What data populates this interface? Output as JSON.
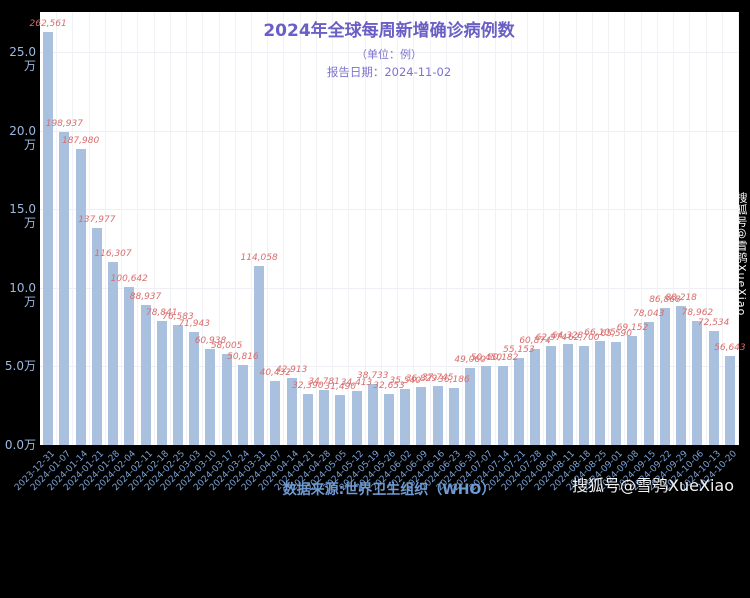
{
  "title": {
    "main": "2024年全球每周新增确诊病例数",
    "unit": "（单位：例）",
    "report_date": "报告日期：2024-11-02"
  },
  "source": "数据来源:世界卫生组织（WHO）",
  "watermark": {
    "bottom_right": "搜狐号@雪鸮XueXiao",
    "right_vertical": "搜狐号@雪鸮XueXiao"
  },
  "y_axis": {
    "labels": [
      "25.0万",
      "20.0万",
      "15.0万",
      "10.0万",
      "5.0万",
      "0.0万"
    ],
    "values": [
      250000,
      200000,
      150000,
      100000,
      50000,
      0
    ]
  },
  "colors": {
    "background": "#000000",
    "plot_background": "#ffffff",
    "bar": "#a9c1de",
    "value_label": "#d96c6c",
    "title": "#6a5fc4",
    "axis_text": "#9db9e0",
    "date_text": "#7aa3d8",
    "watermark": "#ffffff"
  },
  "chart_data": {
    "type": "bar",
    "title": "2024年全球每周新增确诊病例数",
    "subtitle": "（单位：例） 报告日期：2024-11-02",
    "xlabel": "",
    "ylabel": "例",
    "ylim": [
      0,
      275000
    ],
    "grid": true,
    "legend_position": "none",
    "categories": [
      "2023-12-31",
      "2024-01-07",
      "2024-01-14",
      "2024-01-21",
      "2024-01-28",
      "2024-02-04",
      "2024-02-11",
      "2024-02-18",
      "2024-02-25",
      "2024-03-03",
      "2024-03-10",
      "2024-03-17",
      "2024-03-24",
      "2024-03-31",
      "2024-04-07",
      "2024-04-14",
      "2024-04-21",
      "2024-04-28",
      "2024-05-05",
      "2024-05-12",
      "2024-05-19",
      "2024-05-26",
      "2024-06-02",
      "2024-06-09",
      "2024-06-16",
      "2024-06-23",
      "2024-06-30",
      "2024-07-07",
      "2024-07-14",
      "2024-07-21",
      "2024-07-28",
      "2024-08-04",
      "2024-08-11",
      "2024-08-18",
      "2024-08-25",
      "2024-09-01",
      "2024-09-08",
      "2024-09-15",
      "2024-09-22",
      "2024-09-29",
      "2024-10-06",
      "2024-10-13",
      "2024-10-20"
    ],
    "values": [
      262561,
      198937,
      187980,
      137977,
      116307,
      100642,
      88937,
      78841,
      76583,
      71943,
      60938,
      58005,
      50816,
      114058,
      40432,
      42913,
      32390,
      34781,
      31490,
      34413,
      38733,
      32653,
      35540,
      36829,
      37745,
      36186,
      49060,
      50450,
      50182,
      55153,
      60874,
      62974,
      64328,
      62700,
      66105,
      65590,
      69152,
      78043,
      86868,
      88218,
      78962,
      72534,
      56643
    ]
  }
}
